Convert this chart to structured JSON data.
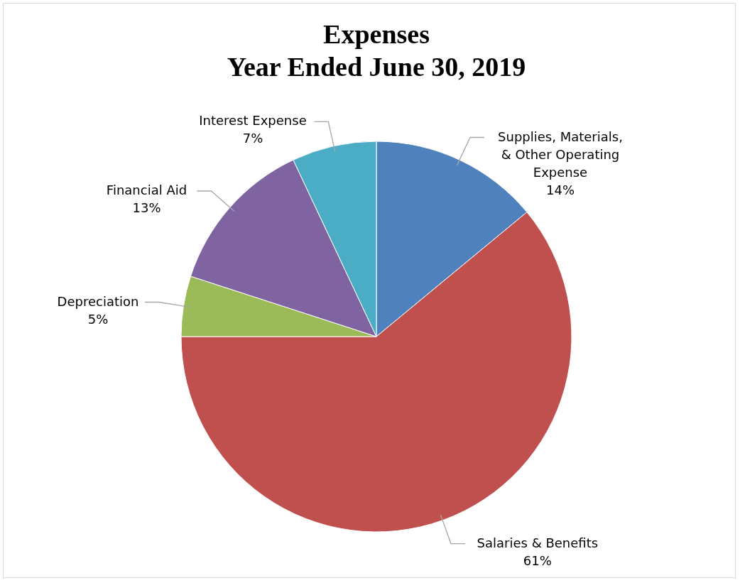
{
  "chart_data": {
    "type": "pie",
    "title": [
      "Expenses",
      "Year Ended June 30, 2019"
    ],
    "categories": [
      "Supplies, Materials, & Other Operating Expense",
      "Salaries & Benefits",
      "Depreciation",
      "Financial Aid",
      "Interest Expense"
    ],
    "values": [
      14,
      61,
      5,
      13,
      7
    ],
    "value_labels": [
      "14%",
      "61%",
      "5%",
      "13%",
      "7%"
    ],
    "colors": [
      "#4f81bd",
      "#c0504d",
      "#9bbb59",
      "#8064a2",
      "#4bacc6"
    ]
  }
}
